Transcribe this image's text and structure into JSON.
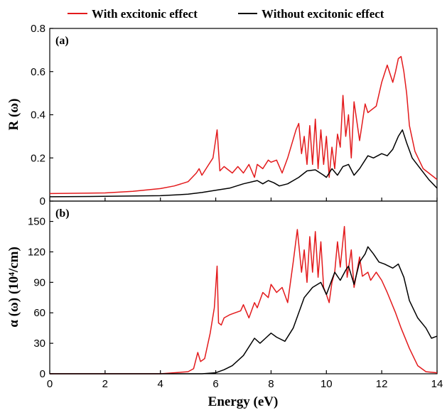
{
  "legend": {
    "entries": [
      {
        "label": "With excitonic effect",
        "color": "#e31a1c"
      },
      {
        "label": "Without excitonic effect",
        "color": "#000000"
      }
    ]
  },
  "chart_data": [
    {
      "type": "line",
      "panel_label": "(a)",
      "ylabel": "R (ω)",
      "xlim": [
        0,
        14
      ],
      "ylim": [
        0,
        0.8
      ],
      "yticks": [
        0,
        0.2,
        0.4,
        0.6,
        0.8
      ],
      "ytick_labels": [
        "0",
        "0.2",
        "0.4",
        "0.6",
        "0.8"
      ],
      "series": [
        {
          "name": "With excitonic effect",
          "color": "#e31a1c",
          "x": [
            0,
            2,
            3,
            4,
            4.5,
            5,
            5.3,
            5.4,
            5.5,
            5.7,
            5.9,
            6.05,
            6.15,
            6.3,
            6.6,
            6.8,
            7.0,
            7.2,
            7.4,
            7.5,
            7.7,
            7.9,
            8.0,
            8.2,
            8.4,
            8.6,
            8.9,
            9.0,
            9.1,
            9.2,
            9.3,
            9.4,
            9.5,
            9.6,
            9.7,
            9.8,
            9.9,
            10.0,
            10.1,
            10.2,
            10.3,
            10.4,
            10.5,
            10.6,
            10.7,
            10.8,
            10.9,
            11.0,
            11.2,
            11.4,
            11.5,
            11.6,
            11.8,
            12.0,
            12.2,
            12.4,
            12.5,
            12.6,
            12.7,
            12.8,
            12.9,
            13.0,
            13.2,
            13.5,
            14.0
          ],
          "y": [
            0.035,
            0.038,
            0.045,
            0.058,
            0.07,
            0.09,
            0.13,
            0.15,
            0.12,
            0.16,
            0.2,
            0.33,
            0.14,
            0.16,
            0.13,
            0.16,
            0.13,
            0.17,
            0.11,
            0.17,
            0.15,
            0.19,
            0.18,
            0.19,
            0.13,
            0.2,
            0.33,
            0.36,
            0.22,
            0.3,
            0.17,
            0.35,
            0.17,
            0.38,
            0.15,
            0.33,
            0.17,
            0.3,
            0.11,
            0.25,
            0.15,
            0.31,
            0.25,
            0.49,
            0.3,
            0.4,
            0.2,
            0.46,
            0.28,
            0.45,
            0.41,
            0.42,
            0.44,
            0.55,
            0.63,
            0.55,
            0.6,
            0.66,
            0.67,
            0.6,
            0.5,
            0.35,
            0.23,
            0.15,
            0.1
          ]
        },
        {
          "name": "Without excitonic effect",
          "color": "#000000",
          "x": [
            0,
            2,
            4,
            5,
            5.5,
            6,
            6.5,
            7.0,
            7.5,
            7.7,
            7.9,
            8.1,
            8.3,
            8.6,
            9.0,
            9.3,
            9.6,
            9.9,
            10.0,
            10.2,
            10.4,
            10.6,
            10.8,
            11.0,
            11.2,
            11.5,
            11.7,
            12.0,
            12.2,
            12.4,
            12.6,
            12.75,
            12.9,
            13.1,
            13.4,
            13.7,
            14.0
          ],
          "y": [
            0.02,
            0.022,
            0.025,
            0.032,
            0.04,
            0.05,
            0.06,
            0.08,
            0.095,
            0.08,
            0.095,
            0.085,
            0.07,
            0.08,
            0.11,
            0.14,
            0.145,
            0.12,
            0.11,
            0.15,
            0.12,
            0.16,
            0.17,
            0.12,
            0.15,
            0.21,
            0.2,
            0.22,
            0.21,
            0.24,
            0.3,
            0.33,
            0.27,
            0.2,
            0.15,
            0.1,
            0.06
          ]
        }
      ]
    },
    {
      "type": "line",
      "panel_label": "(b)",
      "ylabel": "α (ω) (10⁴/cm)",
      "xlabel": "Energy (eV)",
      "xlim": [
        0,
        14
      ],
      "xticks": [
        0,
        2,
        4,
        6,
        8,
        10,
        12,
        14
      ],
      "xtick_labels": [
        "0",
        "2",
        "4",
        "6",
        "8",
        "10",
        "12",
        "14"
      ],
      "ylim": [
        0,
        170
      ],
      "yticks": [
        0,
        30,
        60,
        90,
        120,
        150
      ],
      "ytick_labels": [
        "0",
        "30",
        "60",
        "90",
        "120",
        "150"
      ],
      "series": [
        {
          "name": "With excitonic effect",
          "color": "#e31a1c",
          "x": [
            0,
            4,
            5,
            5.2,
            5.35,
            5.45,
            5.6,
            5.8,
            5.95,
            6.05,
            6.1,
            6.2,
            6.3,
            6.5,
            6.7,
            6.9,
            7.0,
            7.2,
            7.4,
            7.5,
            7.7,
            7.9,
            8.0,
            8.2,
            8.4,
            8.6,
            8.8,
            8.95,
            9.1,
            9.2,
            9.3,
            9.4,
            9.5,
            9.6,
            9.7,
            9.8,
            9.9,
            10.0,
            10.1,
            10.2,
            10.3,
            10.4,
            10.5,
            10.65,
            10.75,
            10.9,
            11.0,
            11.2,
            11.3,
            11.5,
            11.6,
            11.8,
            12.0,
            12.2,
            12.5,
            12.7,
            13.0,
            13.3,
            13.6,
            14.0
          ],
          "y": [
            0,
            0,
            2,
            5,
            21,
            12,
            15,
            40,
            65,
            106,
            50,
            48,
            55,
            58,
            60,
            62,
            68,
            55,
            70,
            65,
            80,
            75,
            88,
            80,
            85,
            70,
            110,
            142,
            100,
            122,
            90,
            135,
            100,
            140,
            95,
            130,
            85,
            78,
            70,
            90,
            100,
            130,
            105,
            145,
            95,
            122,
            85,
            115,
            96,
            100,
            92,
            100,
            92,
            80,
            60,
            45,
            25,
            8,
            2,
            1
          ]
        },
        {
          "name": "Without excitonic effect",
          "color": "#000000",
          "x": [
            0,
            5.5,
            6,
            6.3,
            6.6,
            7.0,
            7.4,
            7.6,
            7.8,
            8.0,
            8.2,
            8.5,
            8.8,
            9.2,
            9.5,
            9.8,
            10.0,
            10.3,
            10.5,
            10.7,
            10.8,
            11.0,
            11.2,
            11.4,
            11.5,
            11.7,
            11.9,
            12.1,
            12.4,
            12.6,
            12.8,
            13.0,
            13.3,
            13.6,
            13.8,
            14.0
          ],
          "y": [
            0,
            0,
            1,
            4,
            8,
            18,
            35,
            30,
            35,
            40,
            36,
            32,
            45,
            75,
            85,
            90,
            78,
            100,
            92,
            102,
            106,
            88,
            110,
            118,
            125,
            118,
            110,
            108,
            104,
            108,
            95,
            72,
            55,
            45,
            35,
            37
          ]
        }
      ]
    }
  ]
}
